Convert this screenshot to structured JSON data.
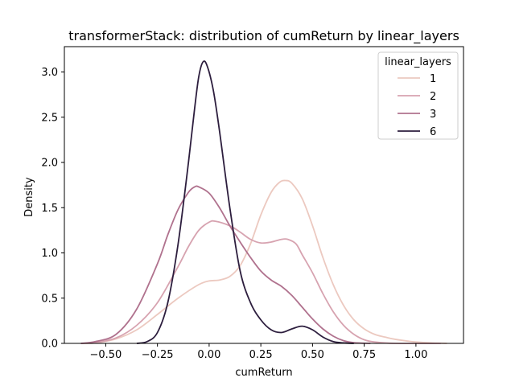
{
  "chart_data": {
    "type": "line",
    "title": "transformerStack: distribution of cumReturn by linear_layers",
    "xlabel": "cumReturn",
    "ylabel": "Density",
    "xlim": [
      -0.7,
      1.23
    ],
    "ylim": [
      0,
      3.28
    ],
    "xticks": [
      -0.5,
      -0.25,
      0.0,
      0.25,
      0.5,
      0.75,
      1.0
    ],
    "xtick_labels": [
      "−0.50",
      "−0.25",
      "0.00",
      "0.25",
      "0.50",
      "0.75",
      "1.00"
    ],
    "yticks": [
      0.0,
      0.5,
      1.0,
      1.5,
      2.0,
      2.5,
      3.0
    ],
    "ytick_labels": [
      "0.0",
      "0.5",
      "1.0",
      "1.5",
      "2.0",
      "2.5",
      "3.0"
    ],
    "grid": false,
    "legend": {
      "title": "linear_layers",
      "placement": "top-right"
    },
    "series": [
      {
        "name": "1",
        "color": "#ecc9c0",
        "points": [
          [
            -0.62,
            0
          ],
          [
            -0.55,
            0.005
          ],
          [
            -0.45,
            0.05
          ],
          [
            -0.35,
            0.15
          ],
          [
            -0.25,
            0.32
          ],
          [
            -0.15,
            0.5
          ],
          [
            -0.05,
            0.65
          ],
          [
            0.0,
            0.69
          ],
          [
            0.05,
            0.7
          ],
          [
            0.1,
            0.74
          ],
          [
            0.15,
            0.86
          ],
          [
            0.2,
            1.1
          ],
          [
            0.25,
            1.42
          ],
          [
            0.3,
            1.67
          ],
          [
            0.34,
            1.78
          ],
          [
            0.37,
            1.8
          ],
          [
            0.4,
            1.77
          ],
          [
            0.45,
            1.6
          ],
          [
            0.5,
            1.3
          ],
          [
            0.55,
            0.95
          ],
          [
            0.6,
            0.65
          ],
          [
            0.65,
            0.42
          ],
          [
            0.7,
            0.26
          ],
          [
            0.75,
            0.16
          ],
          [
            0.8,
            0.1
          ],
          [
            0.85,
            0.07
          ],
          [
            0.9,
            0.045
          ],
          [
            1.0,
            0.015
          ],
          [
            1.1,
            0.003
          ],
          [
            1.15,
            0
          ]
        ]
      },
      {
        "name": "2",
        "color": "#d7a3b0",
        "points": [
          [
            -0.62,
            0
          ],
          [
            -0.55,
            0.01
          ],
          [
            -0.45,
            0.06
          ],
          [
            -0.35,
            0.2
          ],
          [
            -0.25,
            0.45
          ],
          [
            -0.15,
            0.85
          ],
          [
            -0.1,
            1.07
          ],
          [
            -0.05,
            1.25
          ],
          [
            0.0,
            1.34
          ],
          [
            0.03,
            1.35
          ],
          [
            0.1,
            1.3
          ],
          [
            0.15,
            1.23
          ],
          [
            0.2,
            1.15
          ],
          [
            0.25,
            1.11
          ],
          [
            0.3,
            1.12
          ],
          [
            0.35,
            1.15
          ],
          [
            0.38,
            1.15
          ],
          [
            0.42,
            1.1
          ],
          [
            0.45,
            0.98
          ],
          [
            0.5,
            0.78
          ],
          [
            0.55,
            0.55
          ],
          [
            0.6,
            0.35
          ],
          [
            0.65,
            0.2
          ],
          [
            0.7,
            0.1
          ],
          [
            0.75,
            0.04
          ],
          [
            0.8,
            0.015
          ],
          [
            0.9,
            0
          ],
          [
            1.12,
            0
          ]
        ]
      },
      {
        "name": "3",
        "color": "#b0728e",
        "points": [
          [
            -0.62,
            0
          ],
          [
            -0.55,
            0.02
          ],
          [
            -0.45,
            0.1
          ],
          [
            -0.35,
            0.38
          ],
          [
            -0.25,
            0.88
          ],
          [
            -0.2,
            1.2
          ],
          [
            -0.15,
            1.48
          ],
          [
            -0.1,
            1.67
          ],
          [
            -0.07,
            1.73
          ],
          [
            -0.05,
            1.73
          ],
          [
            0.0,
            1.66
          ],
          [
            0.05,
            1.5
          ],
          [
            0.1,
            1.3
          ],
          [
            0.15,
            1.12
          ],
          [
            0.2,
            0.95
          ],
          [
            0.25,
            0.8
          ],
          [
            0.3,
            0.7
          ],
          [
            0.35,
            0.63
          ],
          [
            0.4,
            0.53
          ],
          [
            0.45,
            0.4
          ],
          [
            0.5,
            0.27
          ],
          [
            0.55,
            0.16
          ],
          [
            0.6,
            0.08
          ],
          [
            0.65,
            0.03
          ],
          [
            0.7,
            0.008
          ],
          [
            0.78,
            0
          ]
        ]
      },
      {
        "name": "6",
        "color": "#2d1e3e",
        "points": [
          [
            -0.35,
            0
          ],
          [
            -0.3,
            0.02
          ],
          [
            -0.25,
            0.12
          ],
          [
            -0.2,
            0.45
          ],
          [
            -0.15,
            1.1
          ],
          [
            -0.1,
            2.0
          ],
          [
            -0.07,
            2.6
          ],
          [
            -0.05,
            2.95
          ],
          [
            -0.03,
            3.11
          ],
          [
            -0.01,
            3.07
          ],
          [
            0.02,
            2.8
          ],
          [
            0.05,
            2.35
          ],
          [
            0.1,
            1.5
          ],
          [
            0.15,
            0.8
          ],
          [
            0.2,
            0.45
          ],
          [
            0.25,
            0.26
          ],
          [
            0.3,
            0.15
          ],
          [
            0.35,
            0.12
          ],
          [
            0.4,
            0.16
          ],
          [
            0.45,
            0.19
          ],
          [
            0.5,
            0.15
          ],
          [
            0.55,
            0.07
          ],
          [
            0.6,
            0.02
          ],
          [
            0.65,
            0.005
          ],
          [
            0.7,
            0
          ]
        ]
      }
    ]
  }
}
